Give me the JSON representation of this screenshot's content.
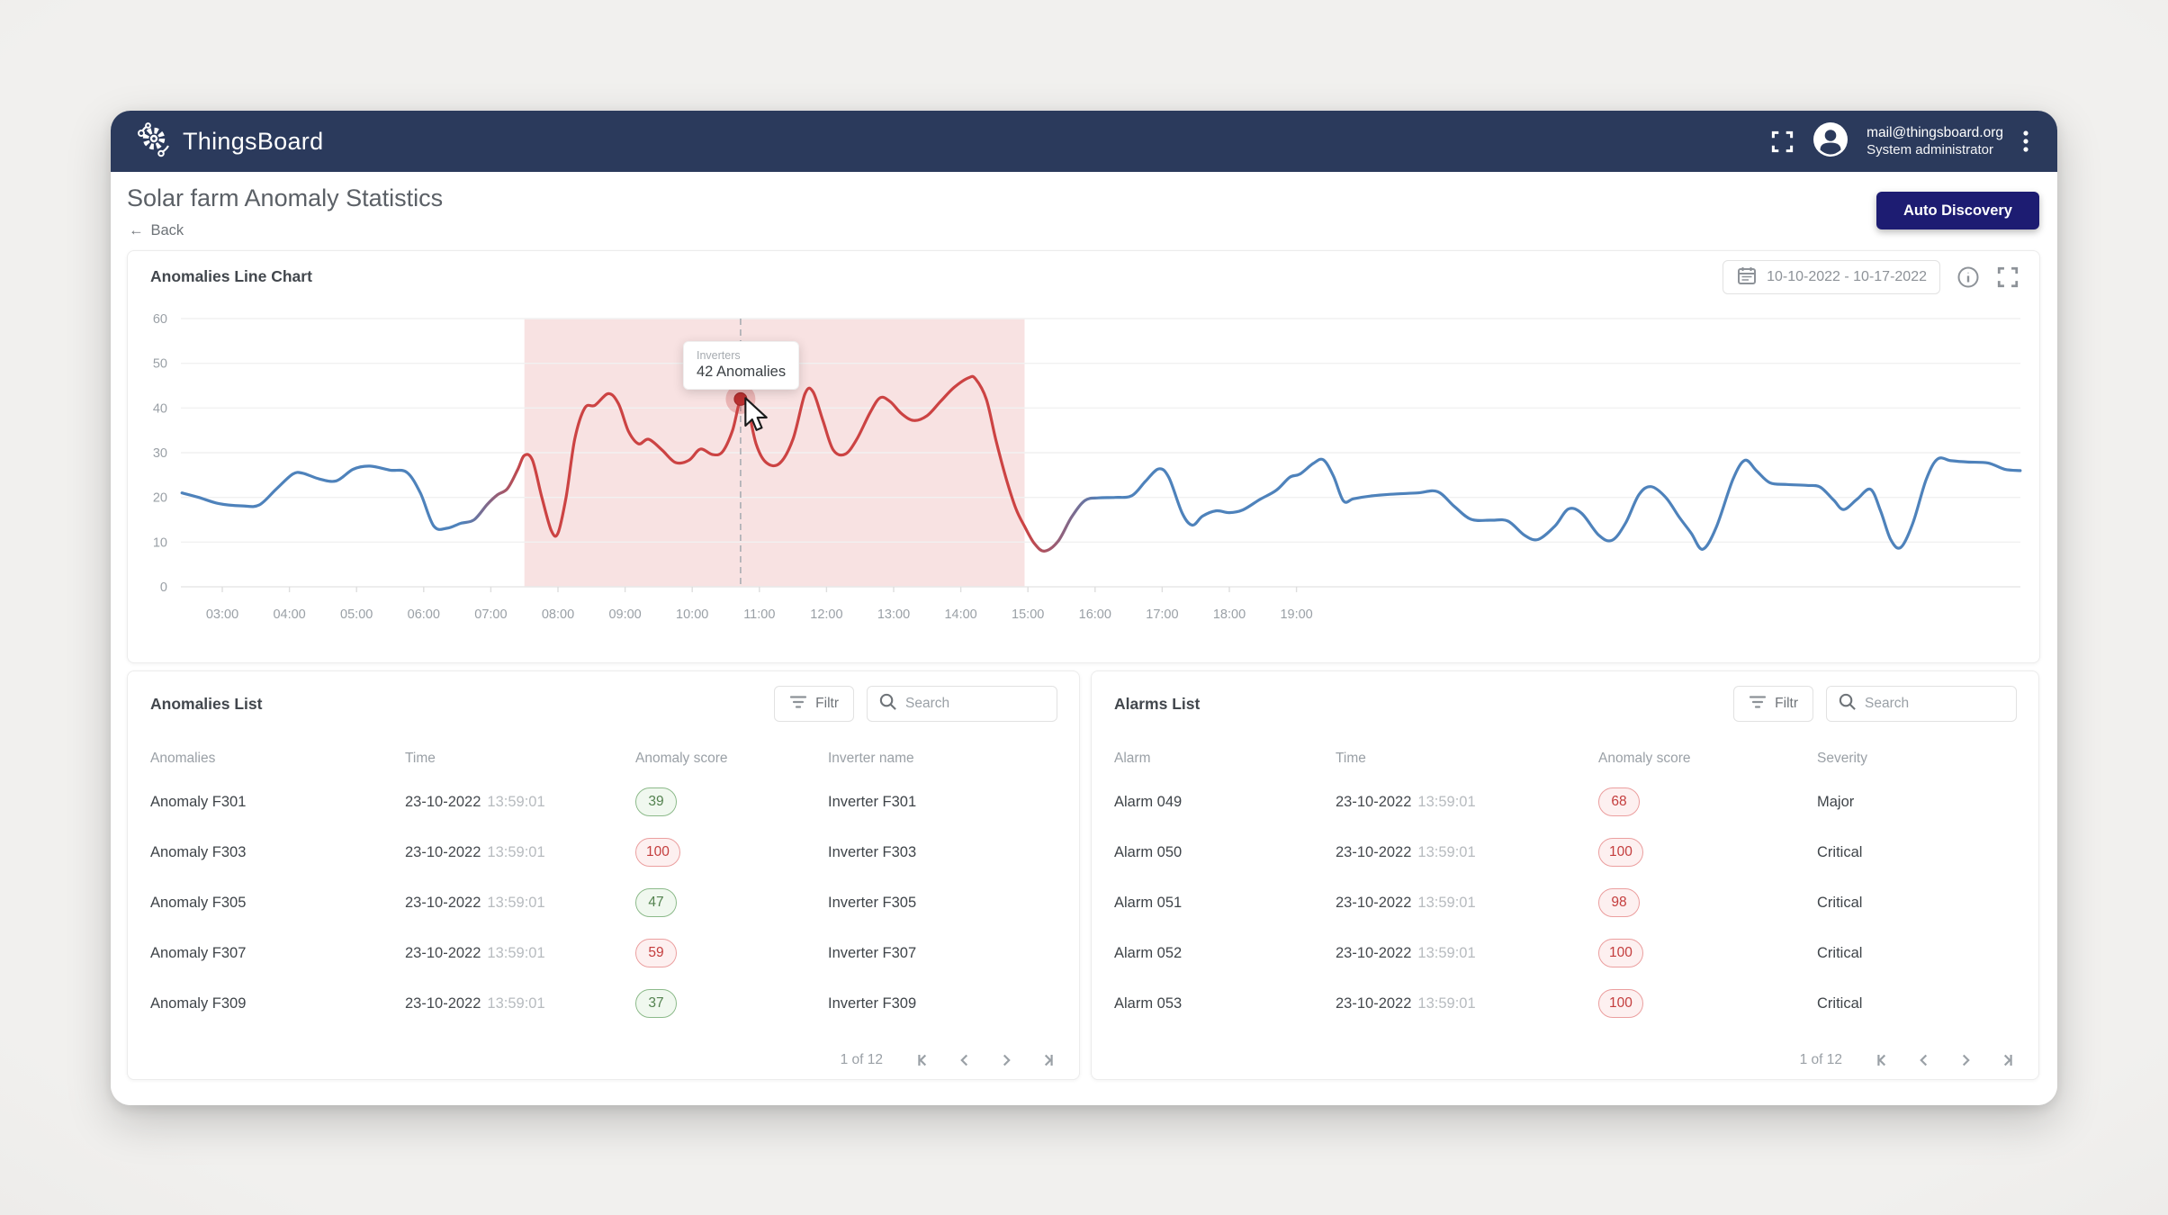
{
  "navbar": {
    "brand": "ThingsBoard",
    "email": "mail@thingsboard.org",
    "role": "System administrator"
  },
  "header": {
    "title": "Solar farm Anomaly Statistics",
    "back_label": "Back",
    "auto_discovery_label": "Auto Discovery"
  },
  "chart_card": {
    "title": "Anomalies Line Chart",
    "date_range": "10-10-2022 - 10-17-2022"
  },
  "chart_data": {
    "type": "line",
    "title": "Anomalies Line Chart",
    "series": [
      {
        "name": "Inverters"
      }
    ],
    "ylim": [
      0,
      60
    ],
    "yticks": [
      0,
      10,
      20,
      30,
      40,
      50,
      60
    ],
    "xtick_labels": [
      "03:00",
      "04:00",
      "05:00",
      "06:00",
      "07:00",
      "08:00",
      "09:00",
      "10:00",
      "11:00",
      "12:00",
      "13:00",
      "14:00",
      "15:00",
      "16:00",
      "17:00",
      "18:00",
      "19:00"
    ],
    "xtick_hours": [
      3,
      4,
      5,
      6,
      7,
      8,
      9,
      10,
      11,
      12,
      13,
      14,
      15,
      16,
      17,
      18,
      19
    ],
    "grid": "horizontal",
    "legend": "none",
    "line_color_normal": "#4e82bb",
    "line_color_anomaly": "#cc4343",
    "anomaly_region_fill": "#f8e2e2",
    "anomaly_window_hours": {
      "from": 7.5,
      "to": 14.95
    },
    "hover": {
      "hour": 10.72,
      "value": 42,
      "series_label": "Inverters",
      "value_label": "42 Anomalies"
    },
    "points": [
      [
        2.4,
        21
      ],
      [
        2.65,
        20
      ],
      [
        2.95,
        18.6
      ],
      [
        3.3,
        18.1
      ],
      [
        3.55,
        18.3
      ],
      [
        3.8,
        21.8
      ],
      [
        4.05,
        25.2
      ],
      [
        4.2,
        25.4
      ],
      [
        4.45,
        24.1
      ],
      [
        4.7,
        23.7
      ],
      [
        4.95,
        26.3
      ],
      [
        5.2,
        27
      ],
      [
        5.5,
        26.1
      ],
      [
        5.75,
        25.6
      ],
      [
        5.95,
        21
      ],
      [
        6.15,
        13.6
      ],
      [
        6.35,
        13.1
      ],
      [
        6.55,
        14.2
      ],
      [
        6.75,
        15
      ],
      [
        6.95,
        18.5
      ],
      [
        7.1,
        20.6
      ],
      [
        7.25,
        22
      ],
      [
        7.4,
        26.2
      ],
      [
        7.5,
        29.4
      ],
      [
        7.62,
        28.3
      ],
      [
        7.76,
        20
      ],
      [
        7.9,
        12.6
      ],
      [
        8.0,
        12
      ],
      [
        8.12,
        20
      ],
      [
        8.25,
        33
      ],
      [
        8.4,
        40
      ],
      [
        8.55,
        40.6
      ],
      [
        8.75,
        43.2
      ],
      [
        8.9,
        41
      ],
      [
        9.05,
        34.8
      ],
      [
        9.2,
        32
      ],
      [
        9.35,
        33
      ],
      [
        9.55,
        30.6
      ],
      [
        9.75,
        27.8
      ],
      [
        9.95,
        28.3
      ],
      [
        10.12,
        30.8
      ],
      [
        10.3,
        29.6
      ],
      [
        10.45,
        30.2
      ],
      [
        10.6,
        35
      ],
      [
        10.72,
        42
      ],
      [
        10.82,
        40.5
      ],
      [
        10.95,
        32
      ],
      [
        11.1,
        27.8
      ],
      [
        11.3,
        27.6
      ],
      [
        11.5,
        33
      ],
      [
        11.68,
        43.2
      ],
      [
        11.8,
        43.6
      ],
      [
        11.95,
        37
      ],
      [
        12.1,
        30.6
      ],
      [
        12.28,
        29.7
      ],
      [
        12.45,
        33
      ],
      [
        12.65,
        39
      ],
      [
        12.8,
        42.3
      ],
      [
        12.95,
        41.4
      ],
      [
        13.12,
        38.7
      ],
      [
        13.3,
        37.2
      ],
      [
        13.5,
        38.3
      ],
      [
        13.7,
        41.5
      ],
      [
        13.9,
        44.6
      ],
      [
        14.12,
        46.8
      ],
      [
        14.22,
        46.5
      ],
      [
        14.38,
        42
      ],
      [
        14.52,
        33
      ],
      [
        14.68,
        24
      ],
      [
        14.82,
        17.5
      ],
      [
        14.95,
        13.5
      ],
      [
        15.1,
        9.6
      ],
      [
        15.25,
        8
      ],
      [
        15.45,
        10.2
      ],
      [
        15.65,
        15.6
      ],
      [
        15.85,
        19.3
      ],
      [
        16.05,
        19.9
      ],
      [
        16.3,
        20
      ],
      [
        16.55,
        20.4
      ],
      [
        16.75,
        23.6
      ],
      [
        16.95,
        26.4
      ],
      [
        17.1,
        24.4
      ],
      [
        17.3,
        16.4
      ],
      [
        17.45,
        13.8
      ],
      [
        17.6,
        15.8
      ],
      [
        17.8,
        17
      ],
      [
        18.0,
        16.6
      ],
      [
        18.2,
        17.2
      ],
      [
        18.45,
        19.5
      ],
      [
        18.7,
        21.6
      ],
      [
        18.9,
        24.5
      ],
      [
        19.05,
        25.2
      ],
      [
        19.25,
        27.6
      ],
      [
        19.4,
        28.4
      ],
      [
        19.55,
        24.8
      ],
      [
        19.7,
        19.2
      ],
      [
        19.85,
        19.7
      ],
      [
        20.1,
        20.3
      ],
      [
        20.4,
        20.7
      ],
      [
        20.8,
        21
      ],
      [
        21.1,
        21.3
      ],
      [
        21.35,
        18
      ],
      [
        21.6,
        15.1
      ],
      [
        21.9,
        14.9
      ],
      [
        22.15,
        14.7
      ],
      [
        22.4,
        11.5
      ],
      [
        22.6,
        10.6
      ],
      [
        22.85,
        13.6
      ],
      [
        23.05,
        17.4
      ],
      [
        23.25,
        16.4
      ],
      [
        23.5,
        11.6
      ],
      [
        23.7,
        10.4
      ],
      [
        23.9,
        14.2
      ],
      [
        24.1,
        20.6
      ],
      [
        24.28,
        22.4
      ],
      [
        24.5,
        20
      ],
      [
        24.7,
        15.6
      ],
      [
        24.88,
        12
      ],
      [
        25.05,
        8.4
      ],
      [
        25.25,
        13.2
      ],
      [
        25.5,
        24
      ],
      [
        25.68,
        28.3
      ],
      [
        25.85,
        26
      ],
      [
        26.05,
        23.3
      ],
      [
        26.3,
        22.9
      ],
      [
        26.6,
        22.7
      ],
      [
        26.8,
        22.3
      ],
      [
        27.0,
        19.4
      ],
      [
        27.15,
        17.3
      ],
      [
        27.35,
        19.6
      ],
      [
        27.55,
        21.8
      ],
      [
        27.7,
        17
      ],
      [
        27.85,
        10.6
      ],
      [
        28.0,
        8.8
      ],
      [
        28.18,
        14.2
      ],
      [
        28.38,
        24
      ],
      [
        28.55,
        28.6
      ],
      [
        28.75,
        28.2
      ],
      [
        29.0,
        27.9
      ],
      [
        29.3,
        27.7
      ],
      [
        29.55,
        26.3
      ],
      [
        29.78,
        26
      ]
    ]
  },
  "anomalies_list": {
    "title": "Anomalies List",
    "filter_label": "Filtr",
    "search_placeholder": "Search",
    "columns": [
      "Anomalies",
      "Time",
      "Anomaly score",
      "Inverter name"
    ],
    "rows": [
      {
        "name": "Anomaly F301",
        "date": "23-10-2022",
        "time": "13:59:01",
        "score": 39,
        "level": "ok",
        "target": "Inverter F301"
      },
      {
        "name": "Anomaly F303",
        "date": "23-10-2022",
        "time": "13:59:01",
        "score": 100,
        "level": "alert",
        "target": "Inverter F303"
      },
      {
        "name": "Anomaly F305",
        "date": "23-10-2022",
        "time": "13:59:01",
        "score": 47,
        "level": "ok",
        "target": "Inverter F305"
      },
      {
        "name": "Anomaly F307",
        "date": "23-10-2022",
        "time": "13:59:01",
        "score": 59,
        "level": "alert",
        "target": "Inverter F307"
      },
      {
        "name": "Anomaly F309",
        "date": "23-10-2022",
        "time": "13:59:01",
        "score": 37,
        "level": "ok",
        "target": "Inverter F309"
      }
    ],
    "pagination": "1 of 12"
  },
  "alarms_list": {
    "title": "Alarms List",
    "filter_label": "Filtr",
    "search_placeholder": "Search",
    "columns": [
      "Alarm",
      "Time",
      "Anomaly score",
      "Severity"
    ],
    "rows": [
      {
        "name": "Alarm 049",
        "date": "23-10-2022",
        "time": "13:59:01",
        "score": 68,
        "level": "alert",
        "target": "Major"
      },
      {
        "name": "Alarm 050",
        "date": "23-10-2022",
        "time": "13:59:01",
        "score": 100,
        "level": "alert",
        "target": "Critical"
      },
      {
        "name": "Alarm 051",
        "date": "23-10-2022",
        "time": "13:59:01",
        "score": 98,
        "level": "alert",
        "target": "Critical"
      },
      {
        "name": "Alarm 052",
        "date": "23-10-2022",
        "time": "13:59:01",
        "score": 100,
        "level": "alert",
        "target": "Critical"
      },
      {
        "name": "Alarm 053",
        "date": "23-10-2022",
        "time": "13:59:01",
        "score": 100,
        "level": "alert",
        "target": "Critical"
      }
    ],
    "pagination": "1 of 12"
  },
  "colors": {
    "navbar": "#2b3a5c",
    "primary_button": "#1d1c72",
    "line_blue": "#4e82bb",
    "line_red": "#cc4343",
    "anomaly_region": "#f8e2e2",
    "badge_ok": "#53824f",
    "badge_alert": "#c43d3d"
  }
}
